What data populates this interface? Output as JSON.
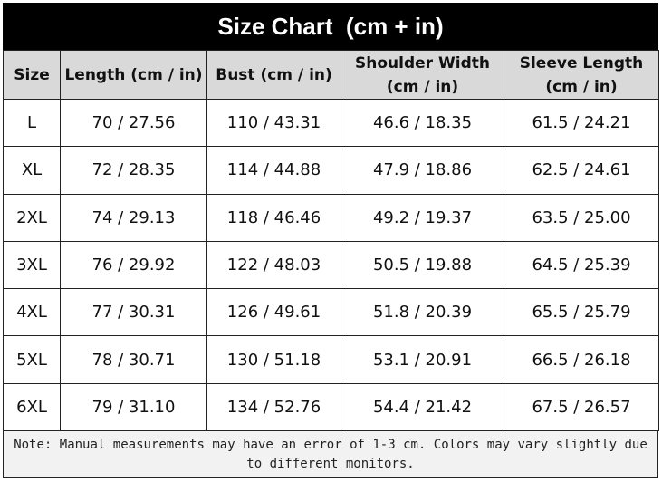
{
  "title": "Size Chart  (cm + in)",
  "table": {
    "header": [
      "Size",
      "Length (cm / in)",
      "Bust (cm / in)",
      "Shoulder Width (cm / in)",
      "Sleeve Length (cm / in)"
    ],
    "rows": [
      [
        "L",
        "70 / 27.56",
        "110 / 43.31",
        "46.6 / 18.35",
        "61.5 / 24.21"
      ],
      [
        "XL",
        "72 / 28.35",
        "114 / 44.88",
        "47.9 / 18.86",
        "62.5 / 24.61"
      ],
      [
        "2XL",
        "74 / 29.13",
        "118 / 46.46",
        "49.2 / 19.37",
        "63.5 / 25.00"
      ],
      [
        "3XL",
        "76 / 29.92",
        "122 / 48.03",
        "50.5 / 19.88",
        "64.5 / 25.39"
      ],
      [
        "4XL",
        "77 / 30.31",
        "126 / 49.61",
        "51.8 / 20.39",
        "65.5 / 25.79"
      ],
      [
        "5XL",
        "78 / 30.71",
        "130 / 51.18",
        "53.1 / 20.91",
        "66.5 / 26.18"
      ],
      [
        "6XL",
        "79 / 31.10",
        "134 / 52.76",
        "54.4 / 21.42",
        "67.5 / 26.57"
      ]
    ]
  },
  "note": "Note: Manual measurements may have an error of 1-3 cm. Colors may vary slightly due to different monitors."
}
